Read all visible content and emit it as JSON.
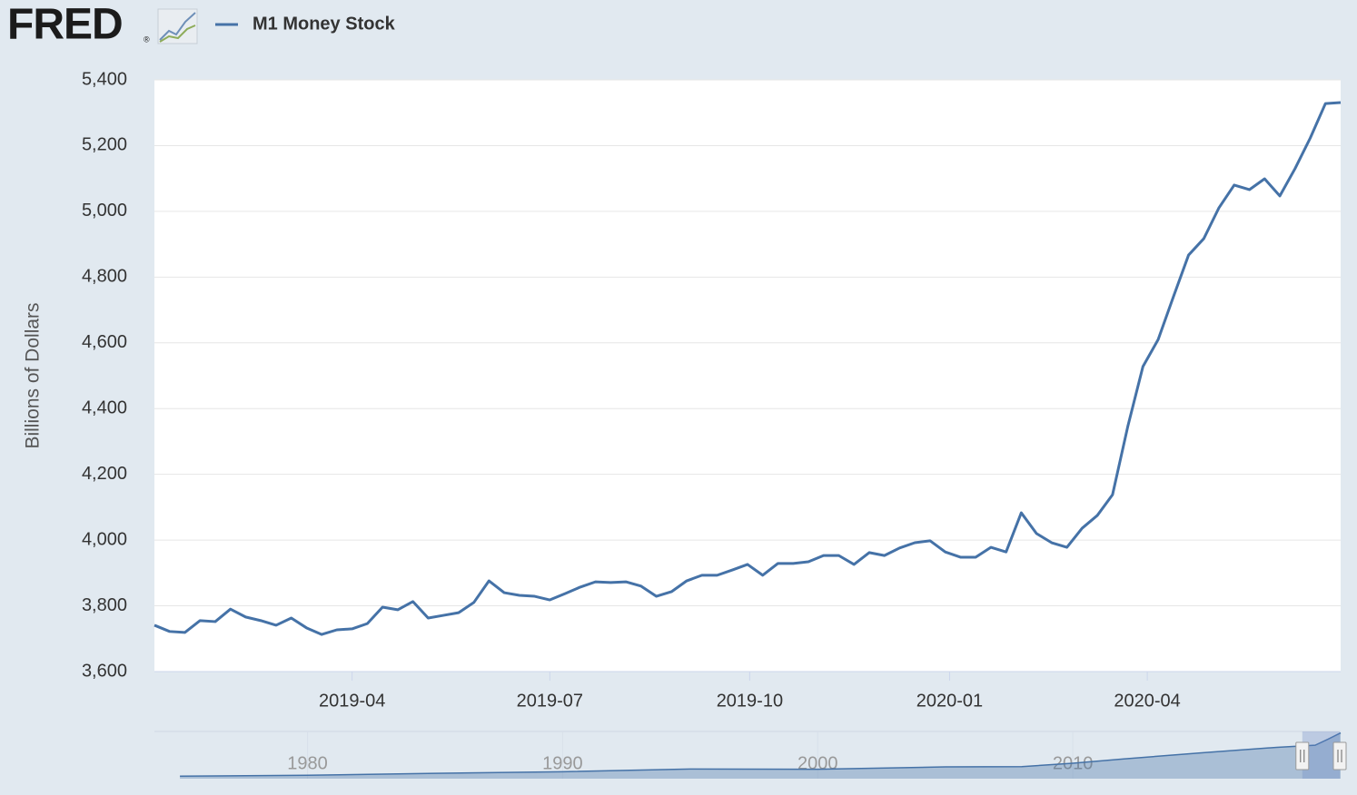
{
  "chart_data": {
    "type": "line",
    "logo": "FRED",
    "logo_mark": "®",
    "ylabel": "Billions of Dollars",
    "x": [
      "2018-12-31",
      "2019-01-07",
      "2019-01-14",
      "2019-01-21",
      "2019-01-28",
      "2019-02-04",
      "2019-02-11",
      "2019-02-18",
      "2019-02-25",
      "2019-03-04",
      "2019-03-11",
      "2019-03-18",
      "2019-03-25",
      "2019-04-01",
      "2019-04-08",
      "2019-04-15",
      "2019-04-22",
      "2019-04-29",
      "2019-05-06",
      "2019-05-13",
      "2019-05-20",
      "2019-05-27",
      "2019-06-03",
      "2019-06-10",
      "2019-06-17",
      "2019-06-24",
      "2019-07-01",
      "2019-07-08",
      "2019-07-15",
      "2019-07-22",
      "2019-07-29",
      "2019-08-05",
      "2019-08-12",
      "2019-08-19",
      "2019-08-26",
      "2019-09-02",
      "2019-09-09",
      "2019-09-16",
      "2019-09-23",
      "2019-09-30",
      "2019-10-07",
      "2019-10-14",
      "2019-10-21",
      "2019-10-28",
      "2019-11-04",
      "2019-11-11",
      "2019-11-18",
      "2019-11-25",
      "2019-12-02",
      "2019-12-09",
      "2019-12-16",
      "2019-12-23",
      "2019-12-30",
      "2020-01-06",
      "2020-01-13",
      "2020-01-20",
      "2020-01-27",
      "2020-02-03",
      "2020-02-10",
      "2020-02-17",
      "2020-02-24",
      "2020-03-02",
      "2020-03-09",
      "2020-03-16",
      "2020-03-23",
      "2020-03-30",
      "2020-04-06",
      "2020-04-13",
      "2020-04-20",
      "2020-04-27",
      "2020-05-04",
      "2020-05-11",
      "2020-05-18",
      "2020-05-25",
      "2020-06-01",
      "2020-06-08",
      "2020-06-15",
      "2020-06-22",
      "2020-06-29"
    ],
    "series": [
      {
        "name": "M1 Money Stock",
        "color": "#4572a7",
        "values": [
          3741,
          3722,
          3719,
          3755,
          3752,
          3790,
          3766,
          3755,
          3741,
          3763,
          3733,
          3713,
          3727,
          3730,
          3746,
          3796,
          3788,
          3813,
          3763,
          3771,
          3779,
          3810,
          3876,
          3840,
          3832,
          3829,
          3818,
          3837,
          3857,
          3873,
          3871,
          3873,
          3860,
          3829,
          3843,
          3876,
          3893,
          3893,
          3909,
          3926,
          3893,
          3929,
          3929,
          3934,
          3953,
          3953,
          3926,
          3962,
          3953,
          3976,
          3992,
          3998,
          3964,
          3948,
          3948,
          3978,
          3964,
          4083,
          4020,
          3992,
          3978,
          4036,
          4075,
          4138,
          4345,
          4528,
          4610,
          4740,
          4867,
          4917,
          5011,
          5080,
          5066,
          5099,
          5047,
          5130,
          5223,
          5328,
          5331
        ]
      }
    ],
    "xlim": [
      "2018-12-31",
      "2020-06-29"
    ],
    "xticks": [
      {
        "value": "2019-04-01",
        "label": "2019-04"
      },
      {
        "value": "2019-07-01",
        "label": "2019-07"
      },
      {
        "value": "2019-10-01",
        "label": "2019-10"
      },
      {
        "value": "2020-01-01",
        "label": "2020-01"
      },
      {
        "value": "2020-04-01",
        "label": "2020-04"
      }
    ],
    "ylim": [
      3600,
      5400
    ],
    "yticks": [
      {
        "value": 3600,
        "label": "3,600"
      },
      {
        "value": 3800,
        "label": "3,800"
      },
      {
        "value": 4000,
        "label": "4,000"
      },
      {
        "value": 4200,
        "label": "4,200"
      },
      {
        "value": 4400,
        "label": "4,400"
      },
      {
        "value": 4600,
        "label": "4,600"
      },
      {
        "value": 4800,
        "label": "4,800"
      },
      {
        "value": 5000,
        "label": "5,000"
      },
      {
        "value": 5200,
        "label": "5,200"
      },
      {
        "value": 5400,
        "label": "5,400"
      }
    ],
    "grid": true,
    "navigator": {
      "x": [
        1975,
        1980,
        1985,
        1990,
        1995,
        2000,
        2005,
        2008,
        2010,
        2012,
        2015,
        2018,
        2019.5,
        2020,
        2020.5
      ],
      "values": [
        290,
        400,
        620,
        810,
        1130,
        1100,
        1370,
        1400,
        1800,
        2300,
        3000,
        3650,
        3900,
        4600,
        5330
      ],
      "xlim": [
        1974,
        2020.5
      ],
      "ylim": [
        0,
        5500
      ],
      "xticks": [
        1980,
        1990,
        2000,
        2010
      ]
    }
  }
}
